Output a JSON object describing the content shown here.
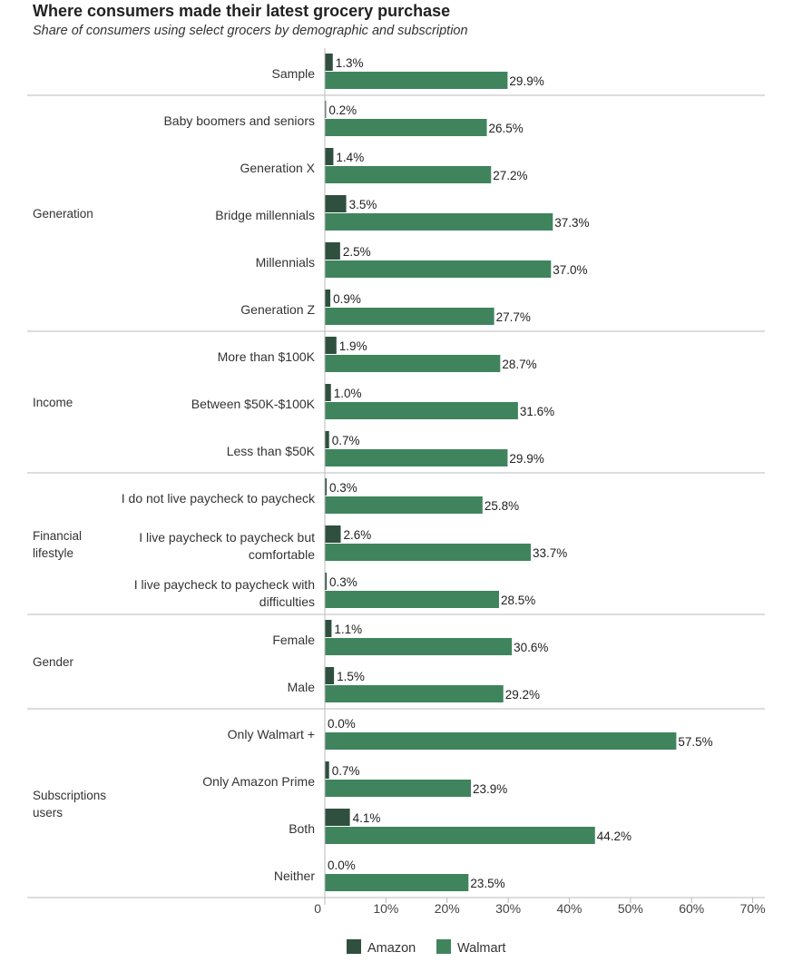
{
  "chart_data": {
    "type": "bar",
    "orientation": "horizontal",
    "title": "Where consumers made their latest grocery purchase",
    "subtitle": "Share of consumers using select grocers by demographic and subscription",
    "xlim": [
      0,
      70
    ],
    "ticks": [
      {
        "value": 0,
        "label": "0"
      },
      {
        "value": 10,
        "label": "10%"
      },
      {
        "value": 20,
        "label": "20%"
      },
      {
        "value": 30,
        "label": "30%"
      },
      {
        "value": 40,
        "label": "40%"
      },
      {
        "value": 50,
        "label": "50%"
      },
      {
        "value": 60,
        "label": "60%"
      },
      {
        "value": 70,
        "label": "70%"
      }
    ],
    "series": [
      {
        "name": "Amazon",
        "color": "#2f4f3f"
      },
      {
        "name": "Walmart",
        "color": "#40845e"
      }
    ],
    "groups": [
      {
        "name": [],
        "categories": [
          {
            "label": [
              "Sample"
            ],
            "amazon": 1.3,
            "walmart": 29.9,
            "amazon_label": "1.3%",
            "walmart_label": "29.9%"
          }
        ]
      },
      {
        "name": [
          "Generation"
        ],
        "categories": [
          {
            "label": [
              "Baby boomers and seniors"
            ],
            "amazon": 0.2,
            "walmart": 26.5,
            "amazon_label": "0.2%",
            "walmart_label": "26.5%"
          },
          {
            "label": [
              "Generation X"
            ],
            "amazon": 1.4,
            "walmart": 27.2,
            "amazon_label": "1.4%",
            "walmart_label": "27.2%"
          },
          {
            "label": [
              "Bridge millennials"
            ],
            "amazon": 3.5,
            "walmart": 37.3,
            "amazon_label": "3.5%",
            "walmart_label": "37.3%"
          },
          {
            "label": [
              "Millennials"
            ],
            "amazon": 2.5,
            "walmart": 37.0,
            "amazon_label": "2.5%",
            "walmart_label": "37.0%"
          },
          {
            "label": [
              "Generation Z"
            ],
            "amazon": 0.9,
            "walmart": 27.7,
            "amazon_label": "0.9%",
            "walmart_label": "27.7%"
          }
        ]
      },
      {
        "name": [
          "Income"
        ],
        "categories": [
          {
            "label": [
              "More than $100K"
            ],
            "amazon": 1.9,
            "walmart": 28.7,
            "amazon_label": "1.9%",
            "walmart_label": "28.7%"
          },
          {
            "label": [
              "Between $50K-$100K"
            ],
            "amazon": 1.0,
            "walmart": 31.6,
            "amazon_label": "1.0%",
            "walmart_label": "31.6%"
          },
          {
            "label": [
              "Less than $50K"
            ],
            "amazon": 0.7,
            "walmart": 29.9,
            "amazon_label": "0.7%",
            "walmart_label": "29.9%"
          }
        ]
      },
      {
        "name": [
          "Financial",
          "lifestyle"
        ],
        "categories": [
          {
            "label": [
              "I do not live paycheck to paycheck"
            ],
            "amazon": 0.3,
            "walmart": 25.8,
            "amazon_label": "0.3%",
            "walmart_label": "25.8%"
          },
          {
            "label": [
              "I live paycheck to paycheck but",
              "comfortable"
            ],
            "amazon": 2.6,
            "walmart": 33.7,
            "amazon_label": "2.6%",
            "walmart_label": "33.7%"
          },
          {
            "label": [
              "I live paycheck to paycheck with",
              "difficulties"
            ],
            "amazon": 0.3,
            "walmart": 28.5,
            "amazon_label": "0.3%",
            "walmart_label": "28.5%"
          }
        ]
      },
      {
        "name": [
          "Gender"
        ],
        "categories": [
          {
            "label": [
              "Female"
            ],
            "amazon": 1.1,
            "walmart": 30.6,
            "amazon_label": "1.1%",
            "walmart_label": "30.6%"
          },
          {
            "label": [
              "Male"
            ],
            "amazon": 1.5,
            "walmart": 29.2,
            "amazon_label": "1.5%",
            "walmart_label": "29.2%"
          }
        ]
      },
      {
        "name": [
          "Subscriptions",
          "users"
        ],
        "categories": [
          {
            "label": [
              "Only Walmart +"
            ],
            "amazon": 0.0,
            "walmart": 57.5,
            "amazon_label": "0.0%",
            "walmart_label": "57.5%"
          },
          {
            "label": [
              "Only Amazon Prime"
            ],
            "amazon": 0.7,
            "walmart": 23.9,
            "amazon_label": "0.7%",
            "walmart_label": "23.9%"
          },
          {
            "label": [
              "Both"
            ],
            "amazon": 4.1,
            "walmart": 44.2,
            "amazon_label": "4.1%",
            "walmart_label": "44.2%"
          },
          {
            "label": [
              "Neither"
            ],
            "amazon": 0.0,
            "walmart": 23.5,
            "amazon_label": "0.0%",
            "walmart_label": "23.5%"
          }
        ]
      }
    ],
    "legend": {
      "position": "bottom-center",
      "entries": [
        "Amazon",
        "Walmart"
      ]
    }
  }
}
